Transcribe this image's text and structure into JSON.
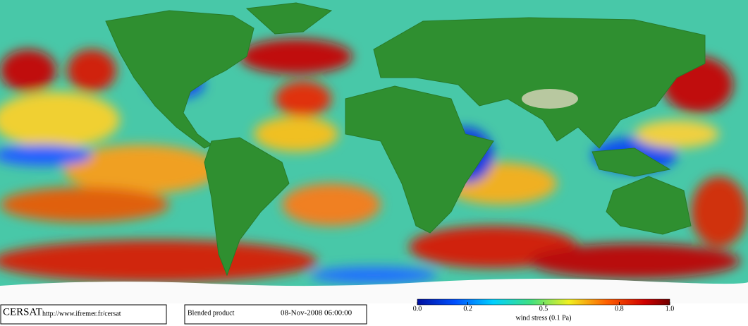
{
  "header": {
    "logo": "CERSAT",
    "url": "http://www.ifremer.fr/cersat",
    "product": "Blended product",
    "date": "08-Nov-2008 06:00:00"
  },
  "colorbar": {
    "label": "wind stress (0.1 Pa)",
    "lim": [
      0,
      1
    ],
    "ticks": [
      {
        "value": 0,
        "label": "0.0"
      },
      0.2,
      0.5,
      0.8,
      {
        "value": 1,
        "label": "1.0"
      }
    ]
  }
}
